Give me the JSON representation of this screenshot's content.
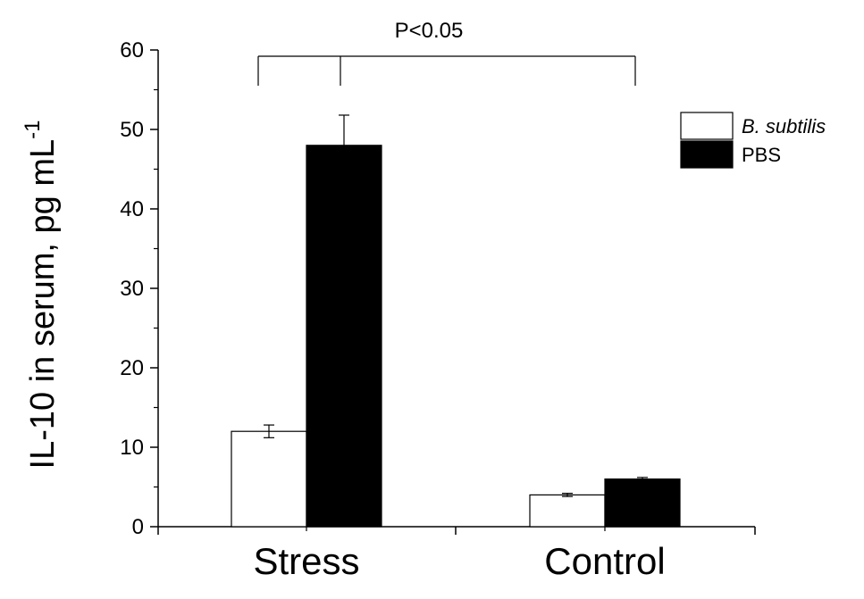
{
  "chart_data": {
    "type": "bar",
    "categories": [
      "Stress",
      "Control"
    ],
    "series": [
      {
        "name": "B. subtilis",
        "values": [
          12,
          4
        ],
        "errors": [
          0.8,
          0.2
        ],
        "fill": "#ffffff",
        "italic": true
      },
      {
        "name": "PBS",
        "values": [
          48,
          6
        ],
        "errors": [
          3.8,
          0.2
        ],
        "fill": "#000000",
        "italic": false
      }
    ],
    "title": "",
    "xlabel": "",
    "ylabel": "IL-10 in serum, pg mL",
    "ylabel_superscript": "-1",
    "ylim": [
      0,
      60
    ],
    "yticks": [
      0,
      10,
      20,
      30,
      40,
      50,
      60
    ],
    "legend_position": "top-right",
    "annotation": {
      "text": "P<0.05",
      "connects": [
        "Stress",
        "Control"
      ]
    },
    "grid": false
  }
}
